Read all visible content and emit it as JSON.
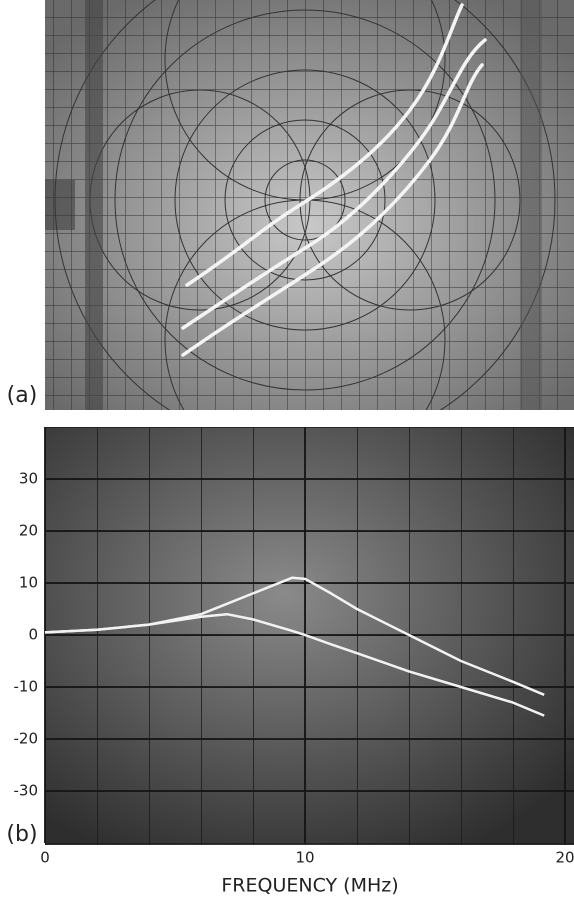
{
  "panel_a": {
    "label": "(a)"
  },
  "chart_data": {
    "type": "line",
    "label": "(b)",
    "x_label": "FREQUENCY (MHz)",
    "x": [
      0,
      2,
      4,
      6,
      7,
      8,
      9.5,
      10,
      11,
      12,
      14,
      16,
      18,
      19.2
    ],
    "series": [
      {
        "color": "#f2f2f2",
        "values": [
          0.5,
          1,
          2,
          4,
          6,
          8,
          11,
          10.8,
          8,
          5,
          0,
          -5,
          -9,
          -11.5
        ]
      },
      {
        "color": "#f2f2f2",
        "values": [
          0.5,
          1,
          2,
          3.5,
          4,
          3,
          0.8,
          0,
          -1.8,
          -3.5,
          -7,
          -10,
          -13,
          -15.5
        ]
      }
    ],
    "xlim": [
      0,
      20
    ],
    "xticks": [
      0,
      10,
      20
    ],
    "ylim": [
      -40,
      40
    ],
    "yticks": [
      30,
      20,
      10,
      0,
      -10,
      -20,
      -30
    ],
    "grid": true
  }
}
